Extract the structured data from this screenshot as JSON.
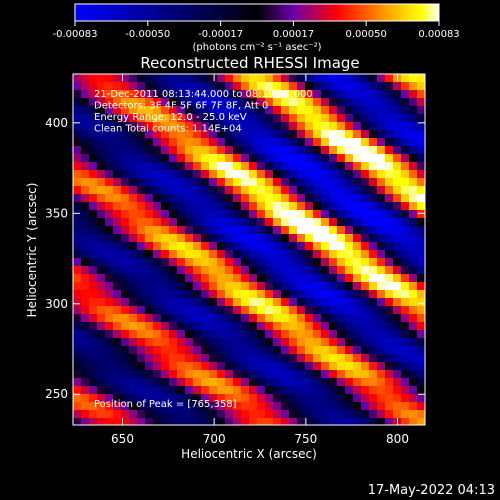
{
  "chart_data": {
    "type": "heatmap",
    "title": "Reconstructed RHESSI Image",
    "xlabel": "Heliocentric X (arcsec)",
    "ylabel": "Heliocentric Y (arcsec)",
    "xlim": [
      623,
      815
    ],
    "ylim": [
      233,
      427
    ],
    "xticks": [
      650,
      700,
      750,
      800
    ],
    "yticks": [
      250,
      300,
      350,
      400
    ],
    "colorbar": {
      "min": -0.00083,
      "max": 0.00083,
      "ticks": [
        "-0.00083",
        "-0.00050",
        "-0.00017",
        "0.00017",
        "0.00050",
        "0.00083"
      ],
      "unit_label": "(photons cm⁻² s⁻¹ asec⁻²)",
      "colormap": [
        "#0000ff",
        "#000000",
        "#6a00a8",
        "#ff0000",
        "#ffa500",
        "#ffff00",
        "#ffffff"
      ]
    },
    "annotations": [
      "21-Dec-2011 08:13:44.000 to 08:19:44.000",
      "Detectors: 3F 4F 5F 6F 7F 8F, Att 0",
      "Energy Range: 12.0 - 25.0 keV",
      "Clean     Total counts: 1.14E+04"
    ],
    "peak_label": "Position of Peak = [765,358]",
    "peak": [
      765,
      358
    ],
    "timestamp": "17-May-2022 04:13"
  }
}
